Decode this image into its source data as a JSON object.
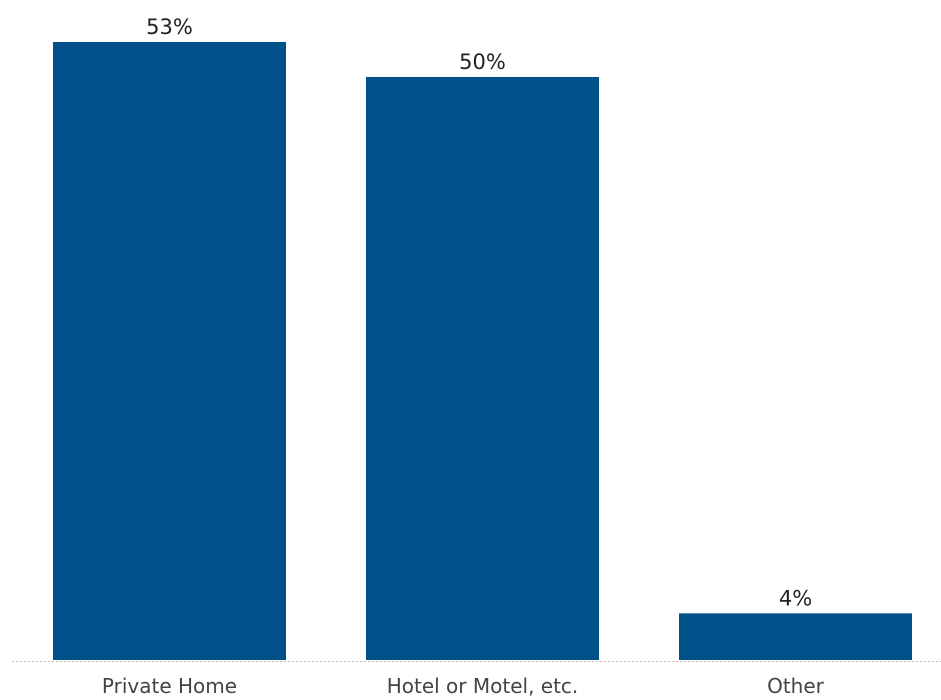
{
  "chart_data": {
    "type": "bar",
    "categories": [
      "Private Home",
      "Hotel or Motel, etc.",
      "Other"
    ],
    "values": [
      53,
      50,
      4
    ],
    "value_labels": [
      "53%",
      "50%",
      "4%"
    ],
    "title": "",
    "xlabel": "",
    "ylabel": "",
    "ylim": [
      0,
      53
    ],
    "grid": false,
    "legend": "none",
    "bar_color": "#02508a",
    "baseline_color": "#bdbdbd"
  }
}
